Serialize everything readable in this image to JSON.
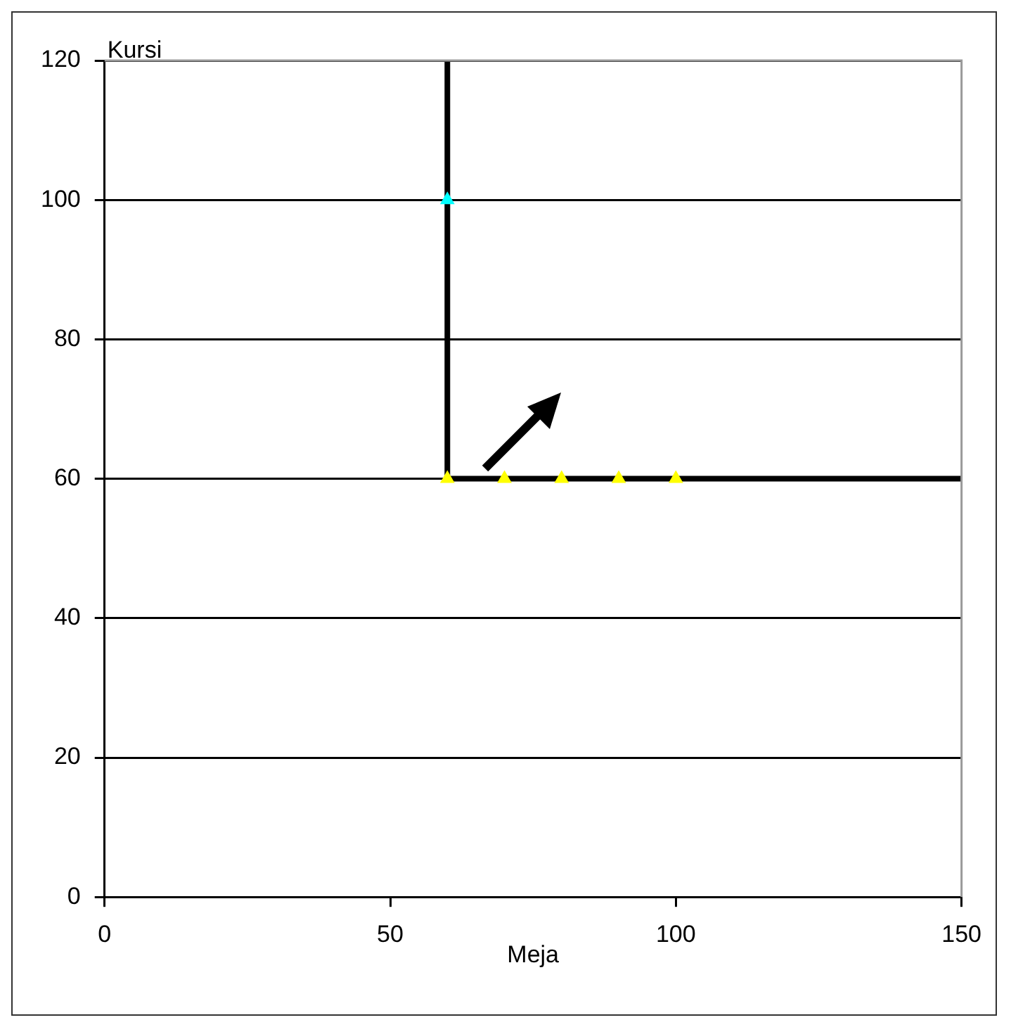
{
  "chart_data": {
    "type": "line",
    "xlabel": "Meja",
    "ylabel": "Kursi",
    "xlim": [
      0,
      150
    ],
    "xticks": [
      0,
      50,
      100,
      150
    ],
    "ylim": [
      0,
      120
    ],
    "yticks": [
      0,
      20,
      40,
      60,
      80,
      100,
      120
    ],
    "grid": "y",
    "legend": false,
    "series": [
      {
        "color": "#000000",
        "x": [
          60,
          60,
          150
        ],
        "values": [
          120,
          60,
          60
        ],
        "marker": "none"
      },
      {
        "type": "scatter",
        "color": "#ffff00",
        "x": [
          60,
          70,
          80,
          90,
          100
        ],
        "values": [
          60,
          60,
          60,
          60,
          60
        ],
        "marker": "triangle"
      },
      {
        "type": "scatter",
        "color": "#00ffff",
        "x": [
          60
        ],
        "values": [
          100
        ],
        "marker": "triangle"
      }
    ]
  }
}
